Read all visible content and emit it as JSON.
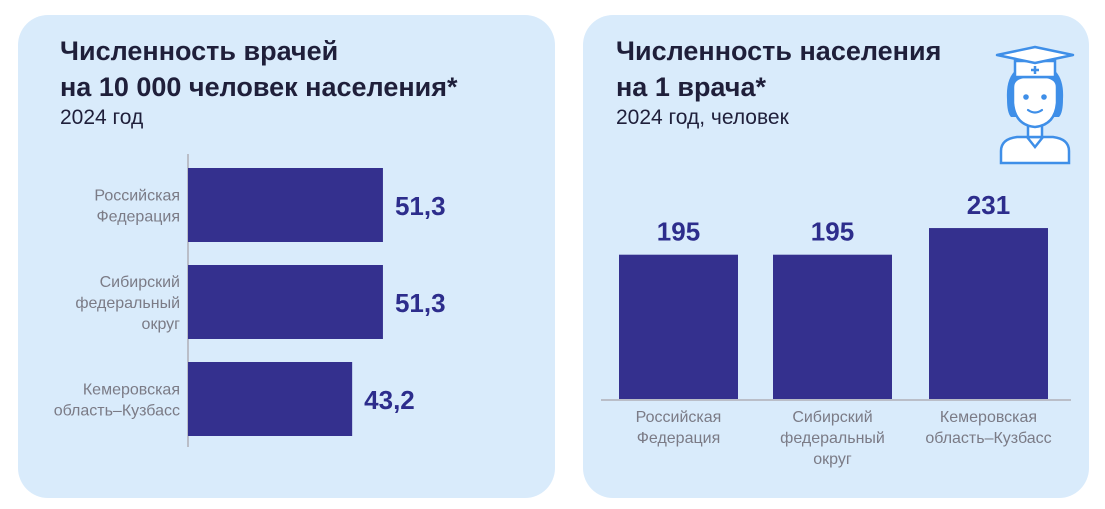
{
  "colors": {
    "panel_bg": "#d9ebfb",
    "bar": "#34308e",
    "value_text": "#2d2d8c",
    "category_text": "#7b7b86",
    "title_text": "#1f1f3a"
  },
  "left_panel": {
    "title_line1": "Численность врачей",
    "title_line2": "на 10 000 человек населения*",
    "subtitle": "2024 год"
  },
  "right_panel": {
    "title_line1": "Численность населения",
    "title_line2": "на 1 врача*",
    "subtitle": "2024 год, человек",
    "illustration": "doctor-icon"
  },
  "chart_data": [
    {
      "type": "bar",
      "orientation": "horizontal",
      "categories": [
        [
          "Российская",
          "Федерация"
        ],
        [
          "Сибирский",
          "федеральный",
          "округ"
        ],
        [
          "Кемеровская",
          "область–Кузбасс"
        ]
      ],
      "values": [
        51.3,
        51.3,
        43.2
      ],
      "value_labels": [
        "51,3",
        "51,3",
        "43,2"
      ],
      "xlim": [
        0,
        58
      ]
    },
    {
      "type": "bar",
      "orientation": "vertical",
      "categories": [
        [
          "Российская",
          "Федерация"
        ],
        [
          "Сибирский",
          "федеральный",
          "округ"
        ],
        [
          "Кемеровская",
          "область–Кузбасс"
        ]
      ],
      "values": [
        195,
        195,
        231
      ],
      "value_labels": [
        "195",
        "195",
        "231"
      ],
      "ylim": [
        0,
        256
      ]
    }
  ]
}
